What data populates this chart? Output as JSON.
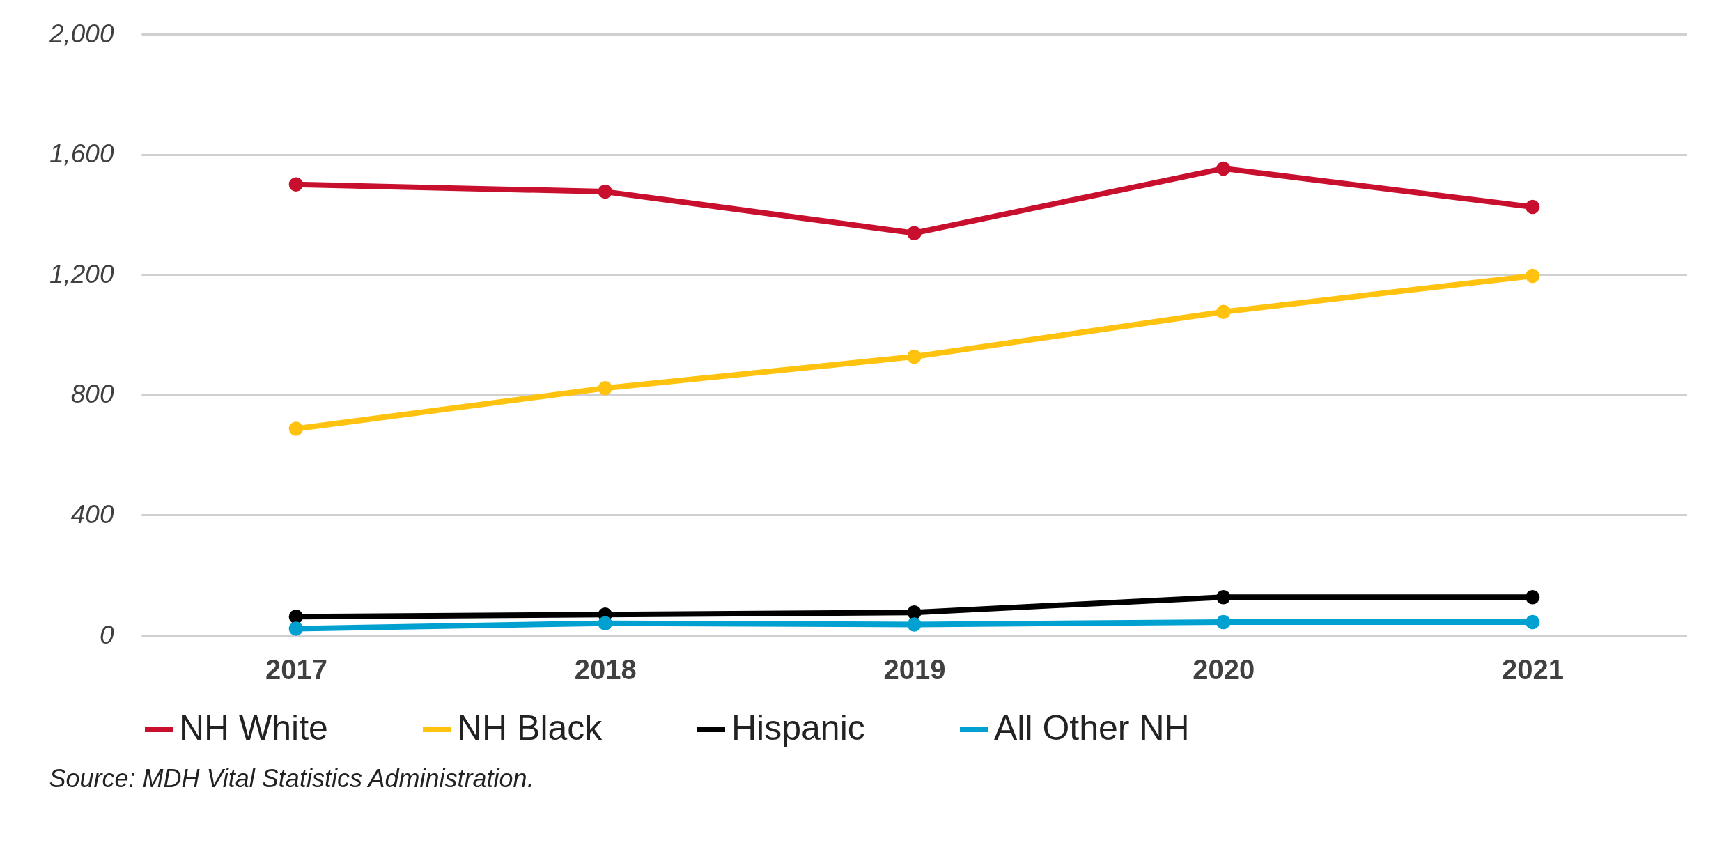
{
  "chart_data": {
    "type": "line",
    "categories": [
      "2017",
      "2018",
      "2019",
      "2020",
      "2021"
    ],
    "series": [
      {
        "name": "NH White",
        "color": "#c8102e",
        "values": [
          1500,
          1476,
          1338,
          1553,
          1425
        ]
      },
      {
        "name": "NH Black",
        "color": "#ffc20e",
        "values": [
          687,
          822,
          927,
          1076,
          1196
        ]
      },
      {
        "name": "Hispanic",
        "color": "#000000",
        "values": [
          62,
          69,
          76,
          127,
          127
        ]
      },
      {
        "name": "All Other NH",
        "color": "#00a0d0",
        "values": [
          22,
          40,
          36,
          44,
          44
        ]
      }
    ],
    "ylim": [
      0,
      2000
    ],
    "yticks": [
      0,
      {
        "value": 400,
        "label": "400"
      },
      {
        "value": 800,
        "label": "800"
      },
      {
        "value": 1200,
        "label": "1,200"
      },
      {
        "value": 1600,
        "label": "1,600"
      },
      {
        "value": 2000,
        "label": "2,000"
      }
    ],
    "grid": "y",
    "legend": "bottom",
    "marker": "circle",
    "line_style": "solid",
    "annotations": [
      "Source: MDH Vital Statistics Administration."
    ]
  }
}
